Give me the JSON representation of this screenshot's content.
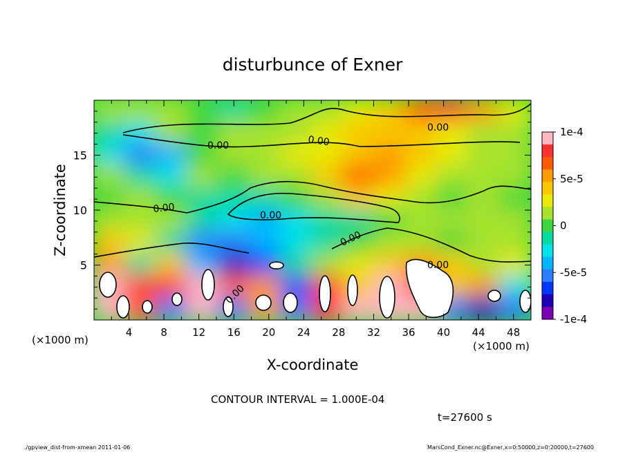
{
  "chart_data": {
    "type": "heatmap",
    "title": "disturbunce of Exner",
    "xlabel": "X-coordinate",
    "ylabel": "Z-coordinate",
    "x_unit_left": "(×1000 m)",
    "x_unit_right": "(×1000 m)",
    "xlim": [
      0,
      50
    ],
    "ylim": [
      0,
      20
    ],
    "x_ticks": [
      "4",
      "8",
      "12",
      "16",
      "20",
      "24",
      "28",
      "32",
      "36",
      "40",
      "44",
      "48"
    ],
    "y_ticks": [
      "5",
      "10",
      "15"
    ],
    "colorbar": {
      "range": [
        -0.0001,
        0.0001
      ],
      "tick_labels": [
        "1e-4",
        "5e-5",
        "0",
        "-5e-5",
        "-1e-4"
      ],
      "colors": [
        "#ffb6c1",
        "#ff3030",
        "#ff5a00",
        "#ff9a00",
        "#f7c800",
        "#e8ea00",
        "#a6e22e",
        "#3ed63e",
        "#00d8a0",
        "#00e0e8",
        "#00b4ff",
        "#2e7cff",
        "#0038ff",
        "#1e00b4",
        "#7a00b4"
      ]
    },
    "contour_label": "0.00",
    "grid": [
      [
        0.2,
        0.1,
        0.1,
        0.0,
        -0.1,
        0.0,
        0.1,
        0.2,
        0.3,
        0.4,
        0.7,
        0.8,
        0.6,
        0.3
      ],
      [
        -0.2,
        -0.3,
        0.1,
        0.0,
        0.1,
        0.2,
        0.2,
        0.3,
        0.5,
        0.5,
        0.4,
        0.3,
        0.2,
        0.1
      ],
      [
        -0.3,
        -0.5,
        -0.4,
        0.0,
        0.1,
        0.2,
        0.3,
        0.3,
        0.5,
        0.6,
        0.5,
        0.3,
        0.2,
        0.1
      ],
      [
        0.1,
        -0.2,
        -0.3,
        0.1,
        0.0,
        0.1,
        0.2,
        0.4,
        0.7,
        0.6,
        0.3,
        0.2,
        0.1,
        0.1
      ],
      [
        0.0,
        0.1,
        0.0,
        -0.1,
        -0.2,
        -0.2,
        0.0,
        0.2,
        0.4,
        0.3,
        0.1,
        0.0,
        0.1,
        0.0
      ],
      [
        0.2,
        0.1,
        0.1,
        -0.1,
        -0.3,
        -0.4,
        -0.3,
        -0.2,
        -0.1,
        0.0,
        0.1,
        0.2,
        0.1,
        0.1
      ],
      [
        0.5,
        0.3,
        -0.2,
        -0.6,
        -0.5,
        -0.4,
        -0.3,
        -0.1,
        0.0,
        0.2,
        0.1,
        0.0,
        0.2,
        0.1
      ],
      [
        0.6,
        -0.2,
        0.5,
        -0.4,
        -0.9,
        -0.7,
        -0.2,
        0.2,
        0.3,
        0.5,
        0.6,
        0.4,
        0.2,
        0.3
      ],
      [
        1.0,
        0.8,
        0.9,
        1.2,
        0.7,
        0.6,
        -0.7,
        0.8,
        0.4,
        1.5,
        0.9,
        0.5,
        0.6,
        -0.3
      ],
      [
        1.5,
        0.7,
        -0.6,
        1.5,
        -0.5,
        0.6,
        -0.5,
        0.8,
        1.2,
        1.6,
        1.3,
        -0.5,
        -0.8,
        -0.5
      ]
    ],
    "annotations": [
      "CONTOUR INTERVAL = 1.000E-04",
      "t=27600 s"
    ]
  },
  "footer": {
    "left": "./gpview_dist-from-xmean   2011-01-06",
    "right": "MarsCond_Exner.nc@Exner,x=0:50000,z=0:20000,t=27600"
  }
}
